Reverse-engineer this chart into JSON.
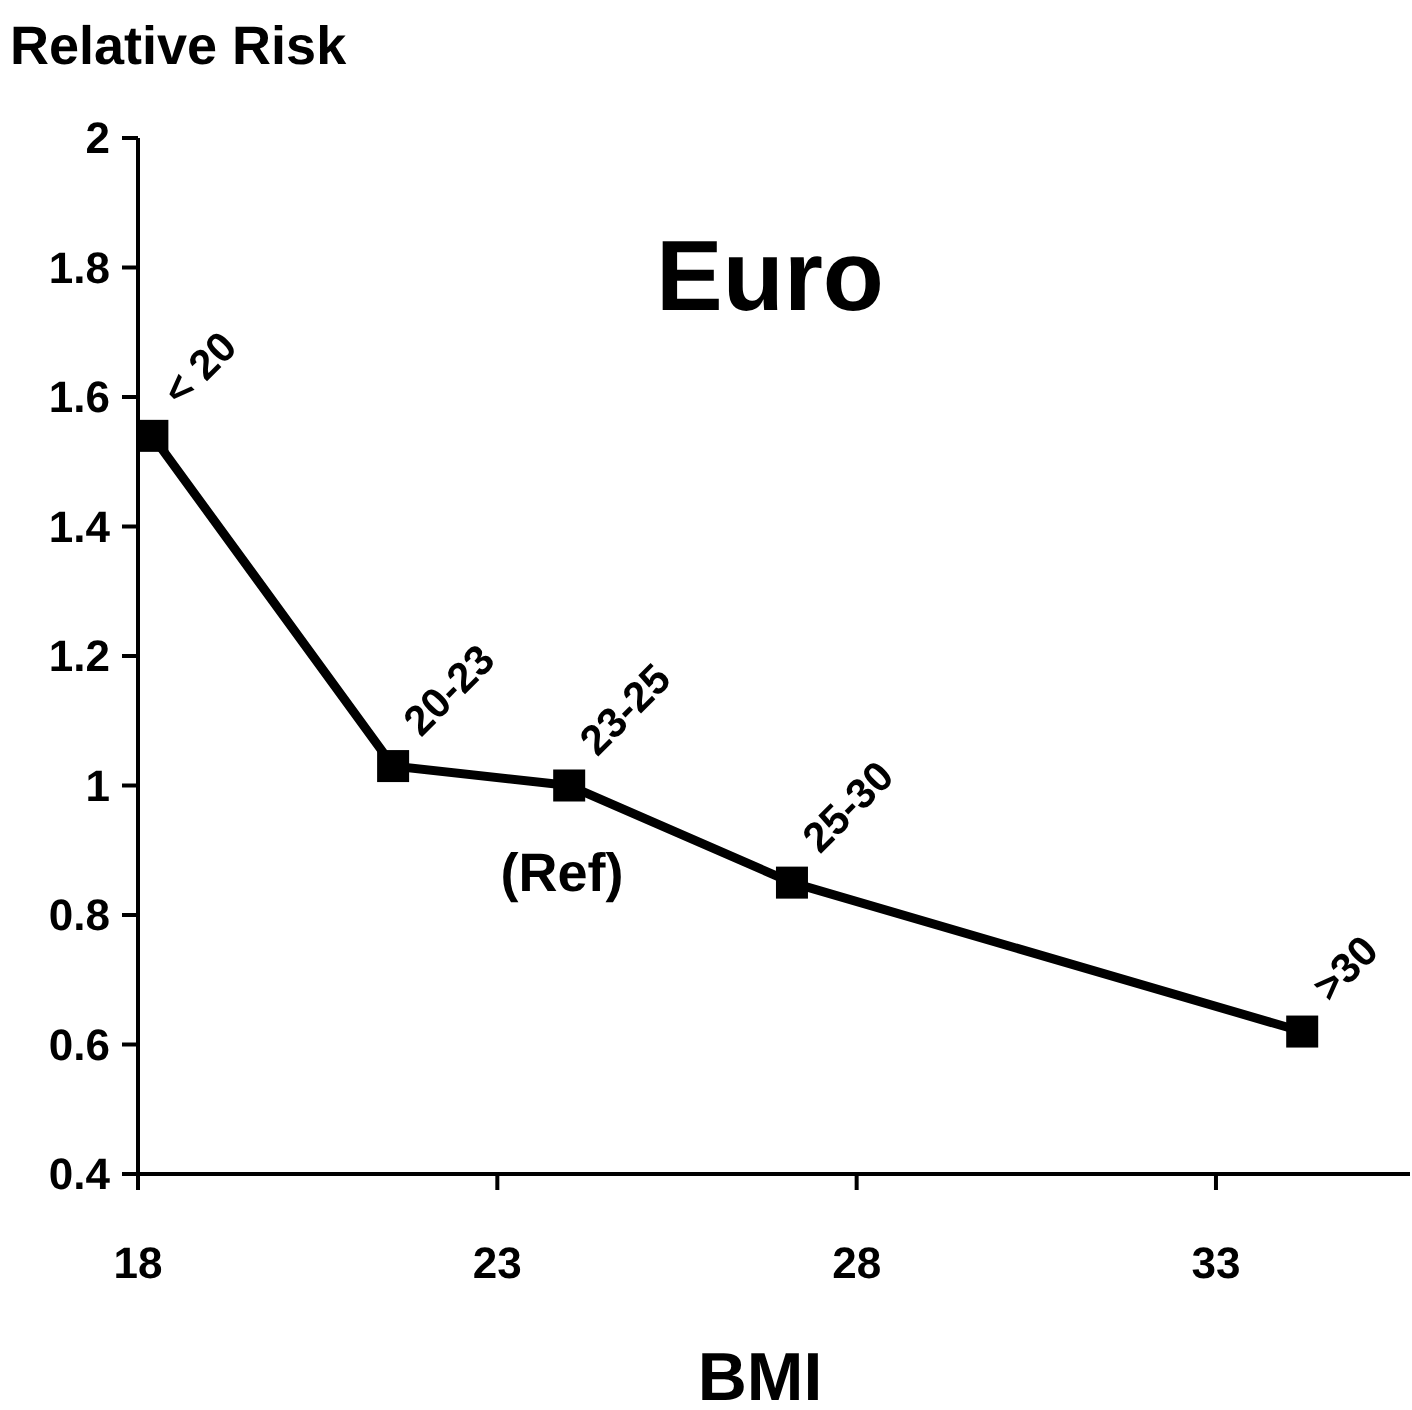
{
  "chart_data": {
    "type": "line",
    "title": "Euro",
    "xlabel": "BMI",
    "ylabel": "Relative Risk",
    "x": [
      18.2,
      21.55,
      24,
      27.1,
      34.2
    ],
    "series": [
      {
        "color": "#000000",
        "values": [
          1.54,
          1.03,
          1.0,
          0.85,
          0.62
        ]
      }
    ],
    "xlim": [
      18,
      35.7
    ],
    "xticks": [
      18,
      23,
      28,
      33
    ],
    "ylim": [
      0.4,
      2
    ],
    "yticks": [
      {
        "value": 0.4,
        "label": "0.4"
      },
      {
        "value": 0.6,
        "label": "0.6"
      },
      {
        "value": 0.8,
        "label": "0.8"
      },
      {
        "value": 1,
        "label": "1"
      },
      {
        "value": 1.2,
        "label": "1.2"
      },
      {
        "value": 1.4,
        "label": "1.4"
      },
      {
        "value": 1.6,
        "label": "1.6"
      },
      {
        "value": 1.8,
        "label": "1.8"
      },
      {
        "value": 2,
        "label": "2"
      }
    ],
    "marker": "square",
    "line_style": "solid",
    "grid": false,
    "annotations": [
      {
        "text": "< 20",
        "x": 18.2,
        "y": 1.54
      },
      {
        "text": "20-23",
        "x": 21.55,
        "y": 1.03
      },
      {
        "text": "23-25",
        "x": 24,
        "y": 1.0
      },
      {
        "text": "25-30",
        "x": 27.1,
        "y": 0.85
      },
      {
        "text": ">30",
        "x": 34.2,
        "y": 0.62
      },
      "(Ref)"
    ]
  }
}
